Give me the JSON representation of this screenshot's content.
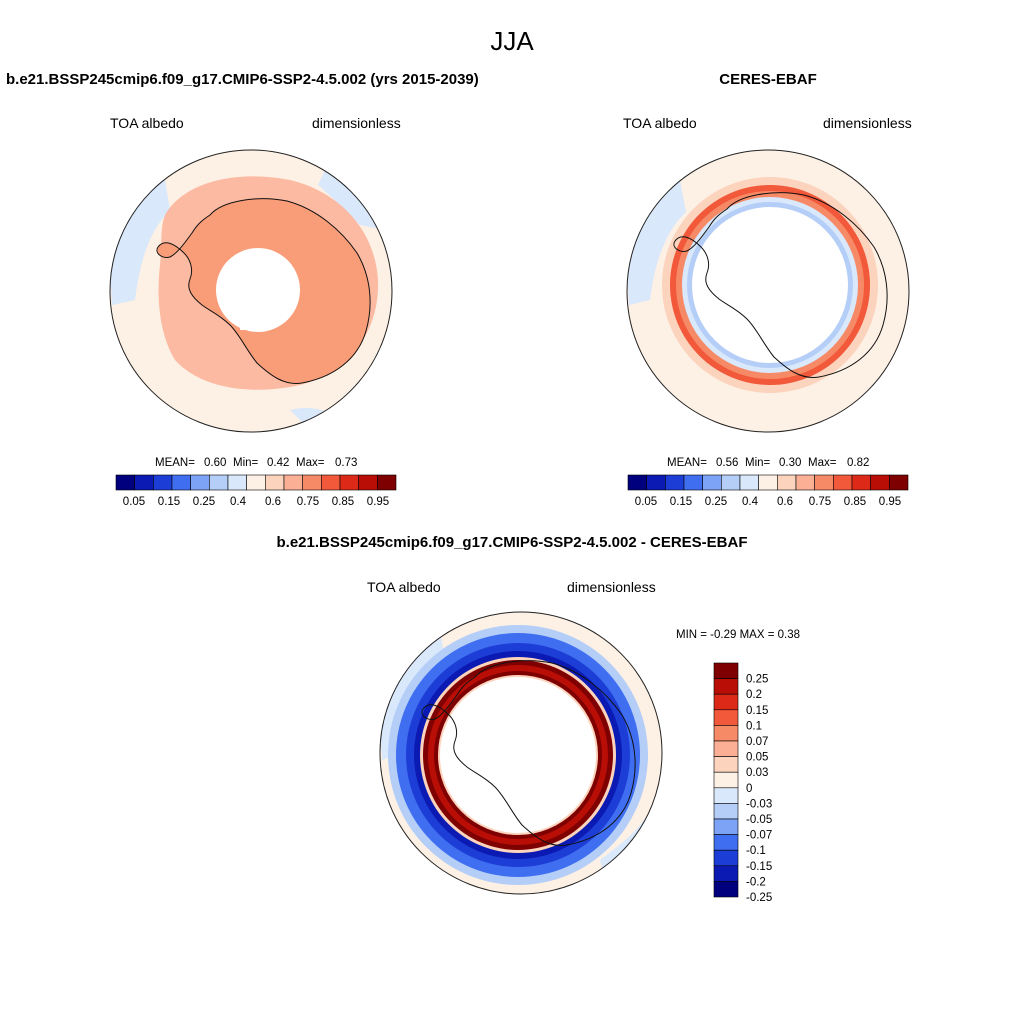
{
  "figure": {
    "season": "JJA",
    "colors": {
      "palette": [
        "#00007f",
        "#0b1ab3",
        "#1d3ed6",
        "#3f6ef0",
        "#7ca3f6",
        "#b4cef8",
        "#d9e8fb",
        "#fdf0e4",
        "#fcd3bd",
        "#fbb096",
        "#f78a66",
        "#f2583a",
        "#dd2a18",
        "#b80e06",
        "#7f0000"
      ]
    },
    "panels": [
      {
        "title": "b.e21.BSSP245cmip6.f09_g17.CMIP6-SSP2-4.5.002 (yrs 2015-2039)",
        "variable": "TOA albedo",
        "units": "dimensionless",
        "stats": {
          "mean_label": "MEAN=",
          "mean": "0.60",
          "min_label": "Min=",
          "min": "0.42",
          "max_label": "Max=",
          "max": "0.73"
        },
        "colorbar_labels": [
          "0.05",
          "0.15",
          "0.25",
          "0.4",
          "0.6",
          "0.75",
          "0.85",
          "0.95"
        ]
      },
      {
        "title": "CERES-EBAF",
        "variable": "TOA albedo",
        "units": "dimensionless",
        "stats": {
          "mean_label": "MEAN=",
          "mean": "0.56",
          "min_label": "Min=",
          "min": "0.30",
          "max_label": "Max=",
          "max": "0.82"
        },
        "colorbar_labels": [
          "0.05",
          "0.15",
          "0.25",
          "0.4",
          "0.6",
          "0.75",
          "0.85",
          "0.95"
        ]
      },
      {
        "title": "b.e21.BSSP245cmip6.f09_g17.CMIP6-SSP2-4.5.002 - CERES-EBAF",
        "variable": "TOA albedo",
        "units": "dimensionless",
        "stats_line": "MIN =  -0.29 MAX =   0.38",
        "colorbar_labels": [
          "0.25",
          "0.2",
          "0.15",
          "0.1",
          "0.07",
          "0.05",
          "0.03",
          "0",
          "-0.03",
          "-0.05",
          "-0.07",
          "-0.1",
          "-0.15",
          "-0.2",
          "-0.25"
        ],
        "colorbar_colors": [
          "#7f0000",
          "#b80e06",
          "#dd2a18",
          "#f2583a",
          "#f78a66",
          "#fbb096",
          "#fcd3bd",
          "#fdf0e4",
          "#d9e8fb",
          "#b4cef8",
          "#7ca3f6",
          "#3f6ef0",
          "#1d3ed6",
          "#0b1ab3",
          "#00007f"
        ]
      }
    ]
  }
}
